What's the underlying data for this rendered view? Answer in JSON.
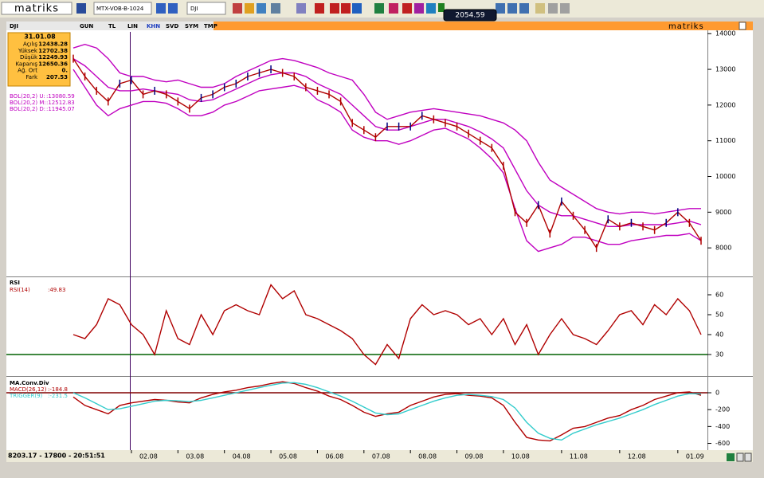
{
  "ui": {
    "logo": "matriks",
    "symbol_box": "MTX-VOB-B-1024",
    "symbol_field": "DJI",
    "ticker_box": "2054.59",
    "tabs": [
      "GUN",
      "TL",
      "LIN",
      "KHN",
      "SVD",
      "SYM",
      "TMP"
    ],
    "brand_right": "matriks",
    "info": {
      "date": "31.01.08",
      "rows": [
        [
          "Açılış",
          "12438.28"
        ],
        [
          "Yüksek",
          "12702.38"
        ],
        [
          "Düşük",
          "12249.93"
        ],
        [
          "Kapanış",
          "12650.36"
        ],
        [
          "Ağ. Ort",
          "0."
        ],
        [
          "Fark",
          "207.53"
        ]
      ]
    },
    "status": "8203.17 - 17800 - 20:51:51"
  },
  "chart_data": [
    {
      "type": "line",
      "title": "DJI",
      "color": "#b00000",
      "values": [
        13300,
        12800,
        12400,
        12100,
        12600,
        12700,
        12300,
        12400,
        12300,
        12100,
        11900,
        12200,
        12300,
        12500,
        12600,
        12800,
        12900,
        13000,
        12900,
        12800,
        12500,
        12400,
        12300,
        12100,
        11500,
        11300,
        11100,
        11400,
        11400,
        11400,
        11700,
        11600,
        11500,
        11400,
        11200,
        11000,
        10800,
        10300,
        9000,
        8700,
        9200,
        8400,
        9300,
        8900,
        8500,
        8000,
        8800,
        8600,
        8700,
        8600,
        8500,
        8700,
        9000,
        8700,
        8200
      ],
      "series": [
        {
          "name": "BOL(20,2) U:",
          "current": ":13080.59",
          "color": "#c000c0",
          "values": [
            13600,
            13700,
            13600,
            13300,
            12900,
            12800,
            12800,
            12700,
            12650,
            12700,
            12600,
            12500,
            12500,
            12600,
            12800,
            12950,
            13100,
            13250,
            13300,
            13250,
            13150,
            13050,
            12900,
            12800,
            12700,
            12300,
            11800,
            11600,
            11700,
            11800,
            11850,
            11900,
            11850,
            11800,
            11750,
            11700,
            11600,
            11500,
            11300,
            11000,
            10400,
            9900,
            9700,
            9500,
            9300,
            9100,
            9000,
            8950,
            9000,
            9000,
            8950,
            9000,
            9050,
            9100,
            9100
          ]
        },
        {
          "name": "BOL(20,2) M:",
          "current": ":12512.83",
          "color": "#c000c0",
          "values": [
            13300,
            13100,
            12800,
            12500,
            12400,
            12400,
            12450,
            12400,
            12350,
            12300,
            12150,
            12100,
            12150,
            12300,
            12450,
            12600,
            12750,
            12850,
            12900,
            12900,
            12800,
            12600,
            12450,
            12300,
            12000,
            11700,
            11400,
            11300,
            11300,
            11400,
            11500,
            11600,
            11600,
            11500,
            11400,
            11250,
            11050,
            10800,
            10200,
            9600,
            9200,
            9000,
            8900,
            8900,
            8800,
            8700,
            8600,
            8600,
            8650,
            8650,
            8650,
            8650,
            8700,
            8750,
            8650
          ]
        },
        {
          "name": "BOL(20,2) D:",
          "current": ":11945.07",
          "color": "#c000c0",
          "values": [
            13000,
            12500,
            12000,
            11700,
            11900,
            12000,
            12100,
            12100,
            12050,
            11900,
            11700,
            11700,
            11800,
            12000,
            12100,
            12250,
            12400,
            12450,
            12500,
            12550,
            12450,
            12150,
            12000,
            11800,
            11300,
            11100,
            11000,
            11000,
            10900,
            11000,
            11150,
            11300,
            11350,
            11200,
            11050,
            10800,
            10500,
            10100,
            9100,
            8200,
            7900,
            8000,
            8100,
            8300,
            8300,
            8200,
            8100,
            8100,
            8200,
            8250,
            8300,
            8350,
            8350,
            8400,
            8200
          ]
        }
      ],
      "ylim": [
        7200,
        14050
      ],
      "yticks": [
        8000,
        9000,
        10000,
        11000,
        12000,
        13000,
        14000
      ]
    },
    {
      "type": "line",
      "title": "RSI",
      "series": [
        {
          "name": "RSI(14)",
          "current": ":49.83",
          "color": "#b00000",
          "values": [
            40,
            38,
            45,
            58,
            55,
            45,
            40,
            30,
            52,
            38,
            35,
            50,
            40,
            52,
            55,
            52,
            50,
            65,
            58,
            62,
            50,
            48,
            45,
            42,
            38,
            30,
            25,
            35,
            28,
            48,
            55,
            50,
            52,
            50,
            45,
            48,
            40,
            48,
            35,
            45,
            30,
            40,
            48,
            40,
            38,
            35,
            42,
            50,
            52,
            45,
            55,
            50,
            58,
            52,
            40
          ]
        }
      ],
      "reference_line": 30,
      "reference_color": "#006000",
      "ylim": [
        20,
        68
      ],
      "yticks": [
        30,
        40,
        50,
        60
      ]
    },
    {
      "type": "line",
      "title": "MA.Conv.Div",
      "categories": [
        null,
        null,
        null,
        null,
        null,
        "02.08",
        null,
        null,
        null,
        "03.08",
        null,
        null,
        null,
        "04.08",
        null,
        null,
        null,
        "05.08",
        null,
        null,
        null,
        "06.08",
        null,
        null,
        null,
        "07.08",
        null,
        null,
        null,
        "08.08",
        null,
        null,
        null,
        "09.08",
        null,
        null,
        null,
        "10.08",
        null,
        null,
        null,
        null,
        "11.08",
        null,
        null,
        null,
        null,
        "12.08",
        null,
        null,
        null,
        null,
        "01.09",
        null,
        null
      ],
      "series": [
        {
          "name": "MACD(26,12)",
          "current": ":-184.8",
          "color": "#b00000",
          "values": [
            -50,
            -150,
            -200,
            -250,
            -150,
            -120,
            -100,
            -80,
            -90,
            -110,
            -120,
            -60,
            -20,
            10,
            30,
            60,
            80,
            110,
            130,
            110,
            60,
            20,
            -40,
            -80,
            -150,
            -230,
            -280,
            -250,
            -230,
            -150,
            -100,
            -50,
            -20,
            -10,
            -30,
            -40,
            -60,
            -150,
            -350,
            -530,
            -560,
            -570,
            -500,
            -420,
            -400,
            -350,
            -300,
            -270,
            -200,
            -150,
            -80,
            -40,
            0,
            10,
            -30
          ]
        },
        {
          "name": "TRIGGER(9)",
          "current": ":-231.5",
          "color": "#33cccc",
          "values": [
            0,
            -60,
            -130,
            -200,
            -190,
            -160,
            -130,
            -100,
            -90,
            -95,
            -105,
            -90,
            -60,
            -30,
            0,
            30,
            60,
            90,
            115,
            120,
            100,
            60,
            10,
            -40,
            -100,
            -170,
            -240,
            -260,
            -250,
            -200,
            -150,
            -100,
            -60,
            -30,
            -20,
            -30,
            -45,
            -80,
            -180,
            -350,
            -480,
            -540,
            -560,
            -480,
            -430,
            -380,
            -340,
            -300,
            -250,
            -200,
            -140,
            -90,
            -40,
            -10,
            -15
          ]
        }
      ],
      "reference_line": 0,
      "reference_color": "#800000",
      "ylim": [
        -680,
        170
      ],
      "yticks": [
        -600,
        -400,
        -200,
        0
      ]
    }
  ]
}
